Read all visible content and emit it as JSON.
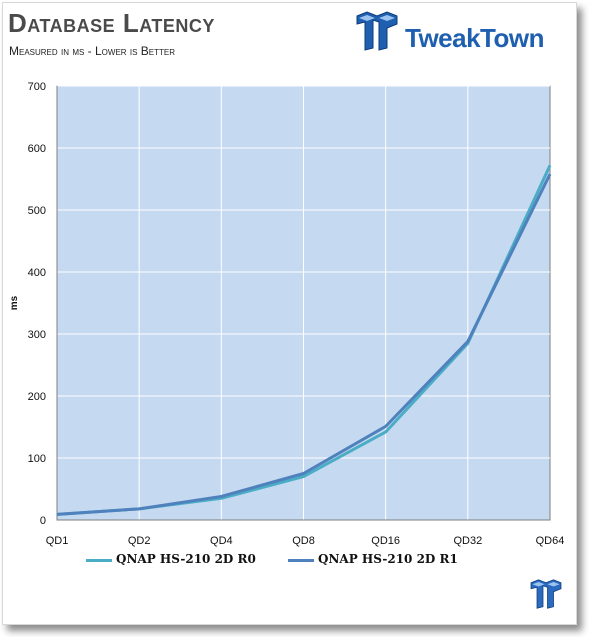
{
  "header": {
    "title": "Database Latency",
    "subtitle": "Measured in ms - Lower is Better",
    "brand": "TweakTown"
  },
  "colors": {
    "plot_bg": "#c5d9f1",
    "grid": "#ffffff",
    "series_r0": "#4bacc6",
    "series_r1": "#4f81bd"
  },
  "chart_data": {
    "type": "line",
    "title": "Database Latency",
    "subtitle": "Measured in ms - Lower is Better",
    "xlabel": "",
    "ylabel": "ms",
    "categories": [
      "QD1",
      "QD2",
      "QD4",
      "QD8",
      "QD16",
      "QD32",
      "QD64"
    ],
    "ylim": [
      0,
      700
    ],
    "yticks": [
      0,
      100,
      200,
      300,
      400,
      500,
      600,
      700
    ],
    "grid": true,
    "legend_position": "bottom",
    "series": [
      {
        "name": "QNAP HS-210 2D R0",
        "color": "#4bacc6",
        "values": [
          9,
          18,
          35,
          70,
          142,
          285,
          572
        ]
      },
      {
        "name": "QNAP HS-210 2D R1",
        "color": "#4f81bd",
        "values": [
          9,
          18,
          38,
          75,
          151,
          288,
          558
        ]
      }
    ]
  }
}
